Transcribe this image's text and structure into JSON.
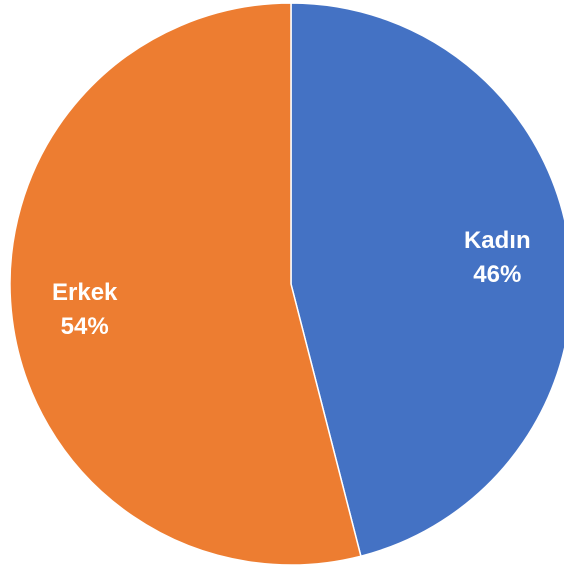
{
  "chart_data": {
    "type": "pie",
    "title": "",
    "categories": [
      "Kadın",
      "Erkek"
    ],
    "values": [
      46,
      54
    ],
    "labels": [
      "46%",
      "54%"
    ],
    "colors": [
      "#4472C4",
      "#ED7D31"
    ],
    "start": "12 o'clock",
    "direction": "clockwise",
    "legend": "none"
  }
}
